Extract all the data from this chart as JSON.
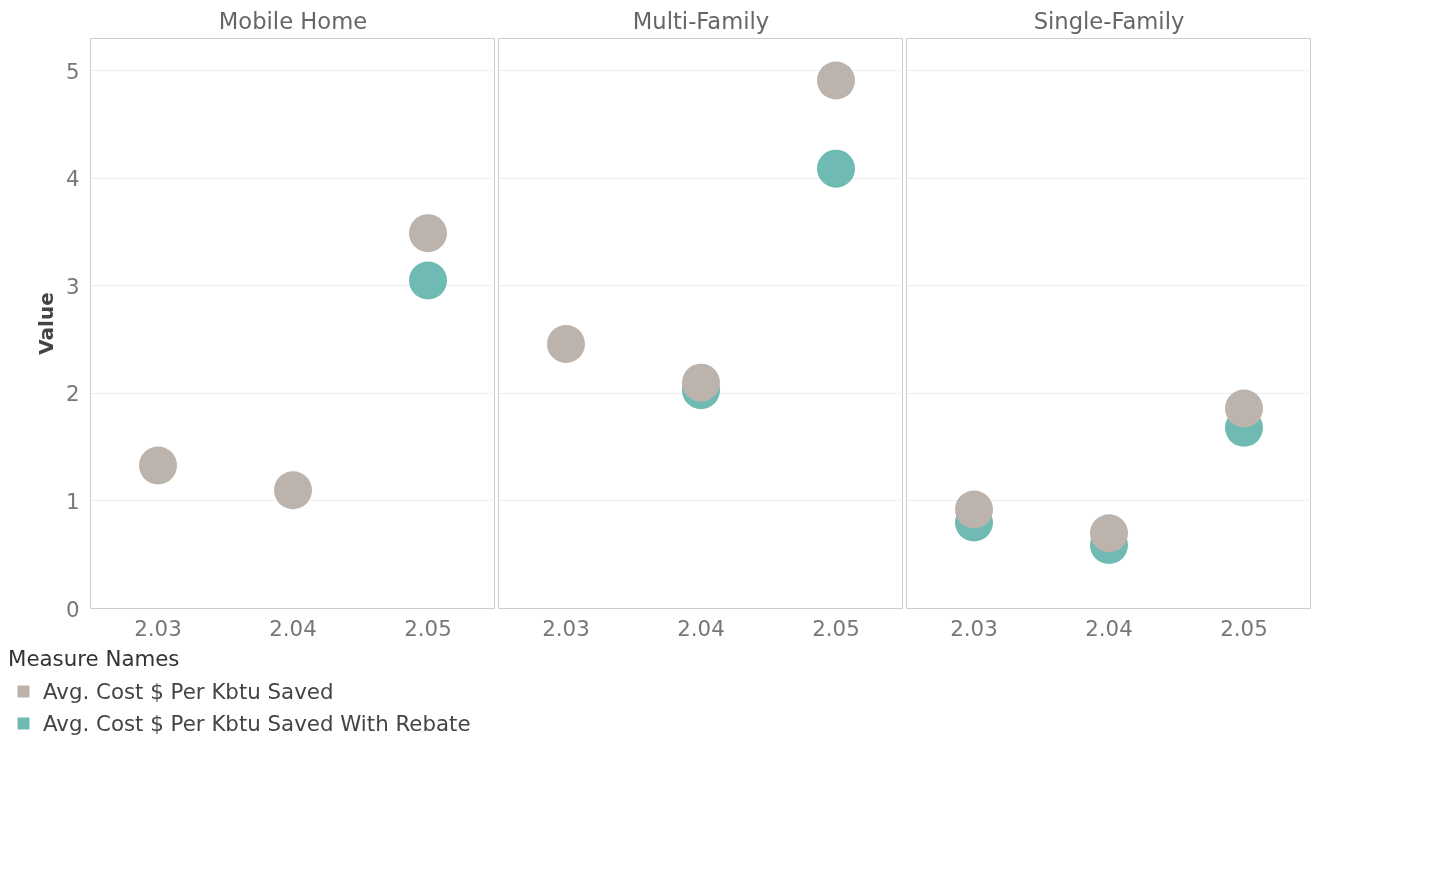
{
  "chart_data": [
    {
      "type": "scatter",
      "title": "Mobile Home",
      "ylabel": "Value",
      "categories": [
        "2.03",
        "2.04",
        "2.05"
      ],
      "ylim": [
        0,
        5.3
      ],
      "yticks": [
        0,
        1,
        2,
        3,
        4,
        5
      ],
      "grid": "y",
      "marker": "circle",
      "legend": "bottom",
      "legend_title": "Measure Names",
      "series": [
        {
          "name": "Avg. Cost $ Per Kbtu Saved With Rebate",
          "color": "#6fbab2",
          "values": [
            null,
            null,
            3.05
          ]
        },
        {
          "name": "Avg. Cost $ Per Kbtu Saved",
          "color": "#bcb3ad",
          "values": [
            1.33,
            1.1,
            3.49
          ]
        }
      ]
    },
    {
      "type": "scatter",
      "title": "Multi-Family",
      "categories": [
        "2.03",
        "2.04",
        "2.05"
      ],
      "ylim": [
        0,
        5.3
      ],
      "yticks": [
        0,
        1,
        2,
        3,
        4,
        5
      ],
      "grid": "y",
      "marker": "circle",
      "tick_labels": "x",
      "series": [
        {
          "color": "#6fbab2",
          "values": [
            null,
            2.03,
            4.09
          ]
        },
        {
          "color": "#bcb3ad",
          "values": [
            2.46,
            2.1,
            4.91
          ]
        }
      ]
    },
    {
      "type": "scatter",
      "title": "Single-Family",
      "categories": [
        "2.03",
        "2.04",
        "2.05"
      ],
      "ylim": [
        0,
        5.3
      ],
      "yticks": [
        0,
        1,
        2,
        3,
        4,
        5
      ],
      "grid": "y",
      "marker": "circle",
      "tick_labels": "x",
      "series": [
        {
          "color": "#6fbab2",
          "values": [
            0.8,
            0.59,
            1.68
          ]
        },
        {
          "color": "#bcb3ad",
          "values": [
            0.92,
            0.7,
            1.86
          ]
        }
      ]
    }
  ]
}
